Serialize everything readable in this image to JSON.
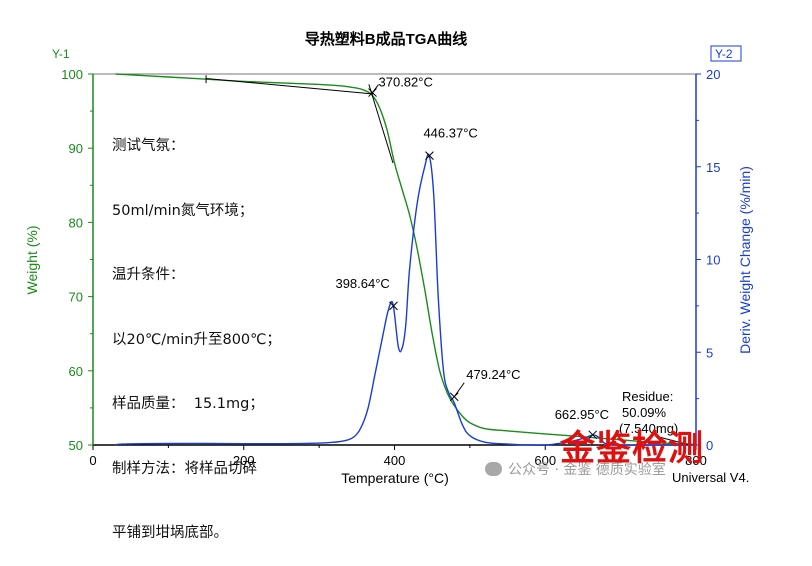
{
  "chart_data": {
    "type": "line",
    "title": "导热塑料B成品TGA曲线",
    "xlabel": "Temperature (°C)",
    "ylabel_left": "Weight (%)",
    "ylabel_right": "Deriv. Weight Change (%/min)",
    "axis_tag_left": "Y-1",
    "axis_tag_right": "Y-2",
    "xlim": [
      0,
      800
    ],
    "ylim_left": [
      50,
      100
    ],
    "ylim_right": [
      0,
      20
    ],
    "x_ticks": [
      "0",
      "200",
      "400",
      "600",
      "800"
    ],
    "y_left_ticks": [
      "50",
      "60",
      "70",
      "80",
      "90",
      "100"
    ],
    "y_right_ticks": [
      "0",
      "5",
      "10",
      "15",
      "20"
    ],
    "grid": false,
    "series": [
      {
        "axis": "left",
        "color": "#1a8c1a",
        "x": [
          30,
          100,
          150,
          200,
          250,
          300,
          330,
          350,
          360,
          370,
          380,
          390,
          400,
          410,
          420,
          430,
          440,
          450,
          460,
          470,
          480,
          490,
          500,
          520,
          550,
          600,
          650,
          700,
          750,
          800
        ],
        "y": [
          100.0,
          99.6,
          99.3,
          99.0,
          98.8,
          98.6,
          98.4,
          98.1,
          97.8,
          97.2,
          95.5,
          92.5,
          88.0,
          84.5,
          81.0,
          76.5,
          71.0,
          65.0,
          60.0,
          57.0,
          55.2,
          53.9,
          53.0,
          52.2,
          51.9,
          51.5,
          51.1,
          50.7,
          50.3,
          50.1
        ]
      },
      {
        "axis": "right",
        "color": "#1a3cd6",
        "x": [
          30,
          40,
          100,
          150,
          200,
          250,
          300,
          330,
          345,
          355,
          365,
          375,
          385,
          392,
          398,
          405,
          410,
          415,
          420,
          430,
          440,
          446,
          452,
          458,
          465,
          472,
          479,
          490,
          500,
          520,
          550,
          600,
          640,
          660,
          663,
          670,
          680,
          700,
          750,
          800
        ],
        "y": [
          0.0,
          0.05,
          0.08,
          0.08,
          0.07,
          0.07,
          0.1,
          0.2,
          0.4,
          0.9,
          2.0,
          4.0,
          6.0,
          7.3,
          7.6,
          5.3,
          5.2,
          6.5,
          9.5,
          13.0,
          15.0,
          15.6,
          13.5,
          8.0,
          4.0,
          2.8,
          2.3,
          1.1,
          0.5,
          0.15,
          0.05,
          0.0,
          0.25,
          0.5,
          0.55,
          0.45,
          0.08,
          0.0,
          0.0,
          0.0
        ]
      }
    ],
    "annotations": [
      {
        "text": "370.82°C",
        "x": 370.82,
        "axis": "left",
        "y": 97.5
      },
      {
        "text": "446.37°C",
        "x": 446.37,
        "axis": "right",
        "y": 15.6
      },
      {
        "text": "398.64°C",
        "x": 398.64,
        "axis": "right",
        "y": 7.5
      },
      {
        "text": "479.24°C",
        "x": 479.24,
        "axis": "right",
        "y": 2.6
      },
      {
        "text": "662.95°C",
        "x": 662.95,
        "axis": "right",
        "y": 0.55
      }
    ],
    "residue_lines": [
      "Residue:",
      "50.09%",
      "(7.540mg)"
    ],
    "conditions": [
      "测试气氛：",
      "50ml/min氮气环境；",
      "温升条件：",
      "以20℃/min升至800℃；",
      "样品质量：  15.1mg；",
      "制样方法：将样品切碎",
      "平铺到坩埚底部。"
    ]
  },
  "watermark": {
    "stamp": "金鉴检测",
    "wechat": "公众号 · 金鉴   德质实验室",
    "instrument": "Universal V4."
  }
}
